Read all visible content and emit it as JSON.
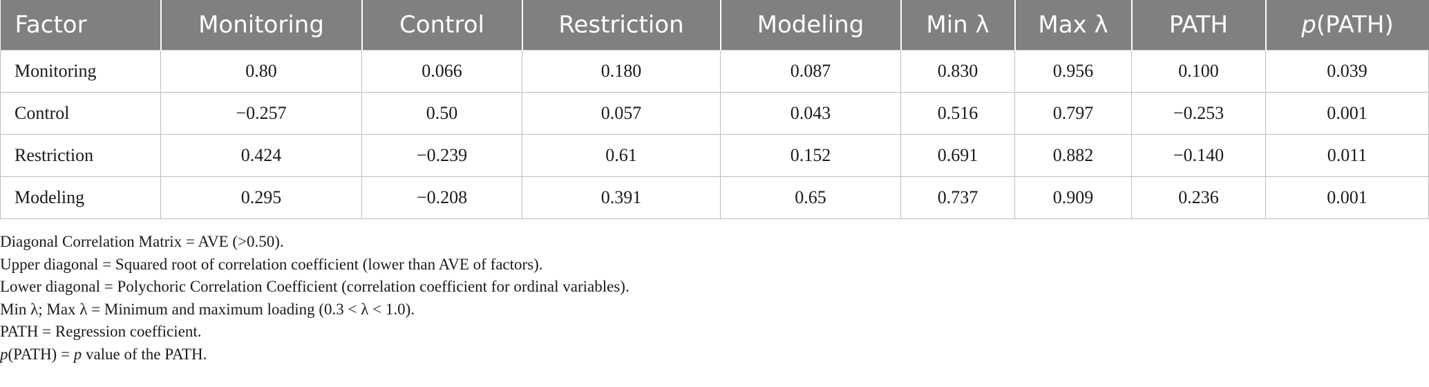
{
  "table": {
    "headers": [
      {
        "prefix": "Factor",
        "italic": "",
        "suffix": ""
      },
      {
        "prefix": "Monitoring",
        "italic": "",
        "suffix": ""
      },
      {
        "prefix": "Control",
        "italic": "",
        "suffix": ""
      },
      {
        "prefix": "Restriction",
        "italic": "",
        "suffix": ""
      },
      {
        "prefix": "Modeling",
        "italic": "",
        "suffix": ""
      },
      {
        "prefix": "Min λ",
        "italic": "",
        "suffix": ""
      },
      {
        "prefix": "Max λ",
        "italic": "",
        "suffix": ""
      },
      {
        "prefix": "PATH",
        "italic": "",
        "suffix": ""
      },
      {
        "prefix": "",
        "italic": "p",
        "suffix": "(PATH)"
      }
    ],
    "rows": [
      [
        "Monitoring",
        "0.80",
        "0.066",
        "0.180",
        "0.087",
        "0.830",
        "0.956",
        "0.100",
        "0.039"
      ],
      [
        "Control",
        "−0.257",
        "0.50",
        "0.057",
        "0.043",
        "0.516",
        "0.797",
        "−0.253",
        "0.001"
      ],
      [
        "Restriction",
        "0.424",
        "−0.239",
        "0.61",
        "0.152",
        "0.691",
        "0.882",
        "−0.140",
        "0.011"
      ],
      [
        "Modeling",
        "0.295",
        "−0.208",
        "0.391",
        "0.65",
        "0.737",
        "0.909",
        "0.236",
        "0.001"
      ]
    ]
  },
  "notes": [
    {
      "segments": [
        {
          "text": "Diagonal Correlation Matrix = AVE (>0.50).",
          "italic": false
        }
      ]
    },
    {
      "segments": [
        {
          "text": "Upper diagonal = Squared root of correlation coefficient (lower than AVE of factors).",
          "italic": false
        }
      ]
    },
    {
      "segments": [
        {
          "text": "Lower diagonal = Polychoric Correlation Coefficient (correlation coefficient for ordinal variables).",
          "italic": false
        }
      ]
    },
    {
      "segments": [
        {
          "text": "Min λ; Max λ = Minimum and maximum loading (0.3 < λ < 1.0).",
          "italic": false
        }
      ]
    },
    {
      "segments": [
        {
          "text": "PATH = Regression coefficient.",
          "italic": false
        }
      ]
    },
    {
      "segments": [
        {
          "text": "p",
          "italic": true
        },
        {
          "text": "(PATH) = ",
          "italic": false
        },
        {
          "text": "p",
          "italic": true
        },
        {
          "text": " value of the PATH.",
          "italic": false
        }
      ]
    }
  ]
}
